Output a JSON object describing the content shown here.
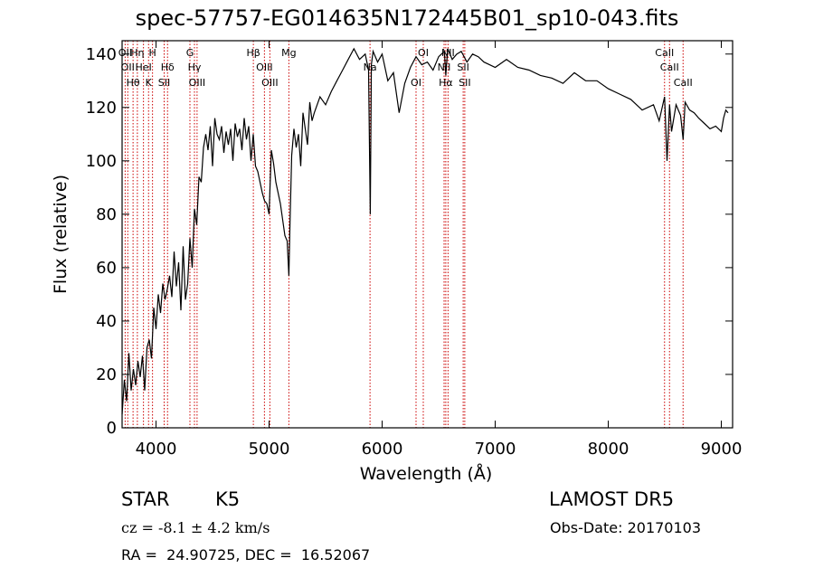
{
  "title": "spec-57757-EG014635N172445B01_sp10-043.fits",
  "info": {
    "star_label": "STAR",
    "class_label": "K5",
    "survey": "LAMOST DR5",
    "cz_text": "cz = -8.1 ± 4.2 km/s",
    "obs_date": "Obs-Date: 20170103",
    "radec": "RA =  24.90725, DEC =  16.52067"
  },
  "chart_data": {
    "type": "line",
    "xlabel": "Wavelength (Å)",
    "ylabel": "Flux (relative)",
    "xlim": [
      3700,
      9100
    ],
    "ylim": [
      0,
      145
    ],
    "xticks": [
      4000,
      5000,
      6000,
      7000,
      8000,
      9000
    ],
    "yticks": [
      0,
      20,
      40,
      60,
      80,
      100,
      120,
      140
    ],
    "grid": false,
    "line_color": "#000000",
    "marker_color": "#cc0000",
    "series": [
      {
        "x": [
          3700,
          3720,
          3740,
          3760,
          3780,
          3800,
          3820,
          3840,
          3860,
          3880,
          3900,
          3920,
          3940,
          3960,
          3980,
          4000,
          4020,
          4040,
          4060,
          4080,
          4100,
          4120,
          4140,
          4160,
          4180,
          4200,
          4220,
          4240,
          4260,
          4280,
          4300,
          4320,
          4340,
          4360,
          4380,
          4400,
          4420,
          4440,
          4460,
          4480,
          4500,
          4520,
          4540,
          4560,
          4580,
          4600,
          4620,
          4640,
          4660,
          4680,
          4700,
          4720,
          4740,
          4760,
          4780,
          4800,
          4820,
          4840,
          4860,
          4880,
          4900,
          4920,
          4940,
          4960,
          4980,
          5000,
          5020,
          5040,
          5060,
          5080,
          5100,
          5120,
          5140,
          5160,
          5175,
          5185,
          5200,
          5220,
          5240,
          5260,
          5280,
          5300,
          5320,
          5340,
          5360,
          5380,
          5400,
          5450,
          5500,
          5550,
          5600,
          5650,
          5700,
          5750,
          5800,
          5850,
          5880,
          5895,
          5905,
          5920,
          5960,
          6000,
          6050,
          6100,
          6150,
          6200,
          6250,
          6300,
          6350,
          6400,
          6450,
          6500,
          6550,
          6563,
          6580,
          6620,
          6660,
          6700,
          6750,
          6800,
          6850,
          6900,
          6950,
          7000,
          7100,
          7200,
          7300,
          7400,
          7500,
          7600,
          7700,
          7800,
          7900,
          8000,
          8100,
          8200,
          8300,
          8400,
          8450,
          8498,
          8520,
          8542,
          8560,
          8600,
          8640,
          8662,
          8680,
          8720,
          8760,
          8800,
          8850,
          8900,
          8950,
          9000,
          9020,
          9040,
          9060
        ],
        "y": [
          5,
          18,
          10,
          28,
          14,
          22,
          16,
          25,
          19,
          27,
          14,
          30,
          33,
          26,
          45,
          37,
          50,
          43,
          54,
          48,
          52,
          57,
          49,
          66,
          53,
          62,
          44,
          68,
          48,
          54,
          71,
          60,
          82,
          76,
          94,
          92,
          105,
          110,
          104,
          113,
          98,
          116,
          110,
          108,
          113,
          103,
          111,
          106,
          112,
          100,
          114,
          109,
          112,
          104,
          116,
          108,
          113,
          100,
          110,
          98,
          96,
          92,
          88,
          85,
          84,
          80,
          104,
          99,
          92,
          88,
          84,
          78,
          72,
          70,
          57,
          76,
          102,
          112,
          105,
          110,
          98,
          118,
          112,
          106,
          122,
          115,
          118,
          124,
          121,
          126,
          130,
          134,
          138,
          142,
          138,
          140,
          134,
          80,
          136,
          141,
          137,
          140,
          130,
          133,
          118,
          129,
          135,
          139,
          136,
          137,
          134,
          139,
          141,
          132,
          142,
          138,
          140,
          141,
          137,
          140,
          139,
          137,
          136,
          135,
          138,
          135,
          134,
          132,
          131,
          129,
          133,
          130,
          130,
          127,
          125,
          123,
          119,
          121,
          115,
          124,
          100,
          121,
          111,
          121,
          117,
          108,
          122,
          119,
          118,
          116,
          114,
          112,
          113,
          111,
          116,
          119,
          118
        ]
      }
    ],
    "lines": [
      {
        "x": 3727,
        "label": "OII"
      },
      {
        "x": 3750,
        "label": "OII"
      },
      {
        "x": 3797,
        "label": "Hθ"
      },
      {
        "x": 3835,
        "label": "Hη"
      },
      {
        "x": 3889,
        "label": "HeI"
      },
      {
        "x": 3934,
        "label": "K"
      },
      {
        "x": 3969,
        "label": "H"
      },
      {
        "x": 4102,
        "label": "Hδ"
      },
      {
        "x": 4072,
        "label": "SII"
      },
      {
        "x": 4300,
        "label": "G"
      },
      {
        "x": 4340,
        "label": "Hγ"
      },
      {
        "x": 4363,
        "label": "OIII"
      },
      {
        "x": 4861,
        "label": "Hβ"
      },
      {
        "x": 4959,
        "label": "OIII"
      },
      {
        "x": 5007,
        "label": "OIII"
      },
      {
        "x": 5175,
        "label": "Mg"
      },
      {
        "x": 5893,
        "label": "Na"
      },
      {
        "x": 6300,
        "label": "OI"
      },
      {
        "x": 6364,
        "label": "OI"
      },
      {
        "x": 6548,
        "label": "NII"
      },
      {
        "x": 6563,
        "label": "Hα"
      },
      {
        "x": 6583,
        "label": "NII"
      },
      {
        "x": 6717,
        "label": "SII"
      },
      {
        "x": 6731,
        "label": "SII"
      },
      {
        "x": 8498,
        "label": "CaII"
      },
      {
        "x": 8542,
        "label": "CaII"
      },
      {
        "x": 8662,
        "label": "CaII"
      }
    ]
  }
}
